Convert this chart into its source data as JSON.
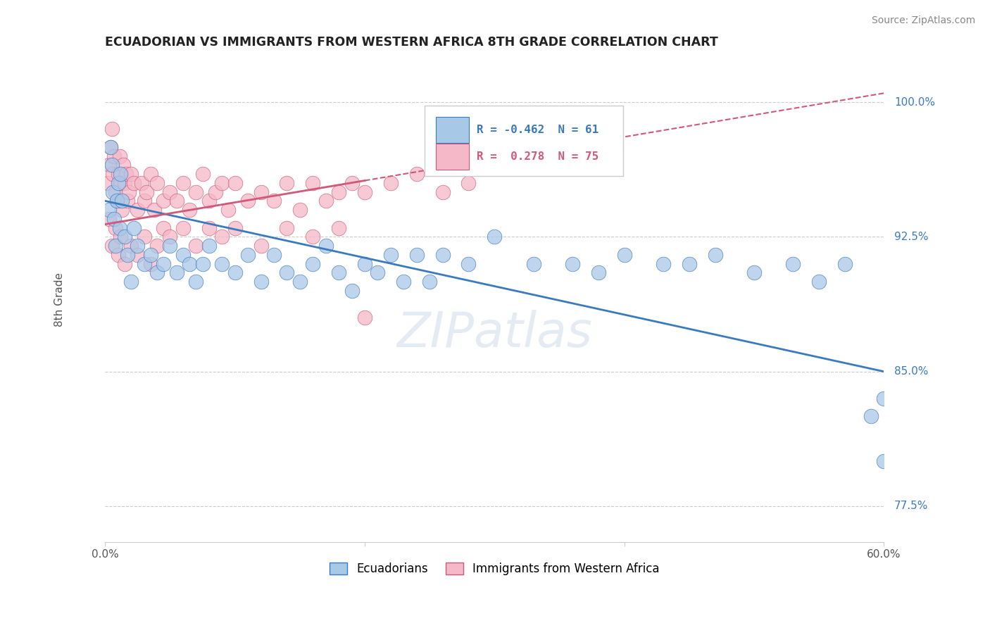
{
  "title": "ECUADORIAN VS IMMIGRANTS FROM WESTERN AFRICA 8TH GRADE CORRELATION CHART",
  "source": "Source: ZipAtlas.com",
  "ylabel": "8th Grade",
  "xlim": [
    0.0,
    60.0
  ],
  "ylim": [
    75.5,
    102.5
  ],
  "yticks": [
    77.5,
    85.0,
    92.5,
    100.0
  ],
  "blue_R": -0.462,
  "blue_N": 61,
  "pink_R": 0.278,
  "pink_N": 75,
  "blue_color": "#a8c8e8",
  "pink_color": "#f4b8c8",
  "blue_line_color": "#3a7abf",
  "pink_line_color": "#d05878",
  "legend_blue_label": "Ecuadorians",
  "legend_pink_label": "Immigrants from Western Africa",
  "watermark": "ZIPatlas",
  "background_color": "#ffffff",
  "blue_line_x0": 0.0,
  "blue_line_y0": 94.5,
  "blue_line_x1": 60.0,
  "blue_line_y1": 85.0,
  "pink_line_x0": 0.0,
  "pink_line_y0": 93.2,
  "pink_line_x1": 60.0,
  "pink_line_y1": 100.5,
  "pink_solid_end_x": 20.0,
  "blue_scatter_x": [
    0.3,
    0.4,
    0.5,
    0.6,
    0.7,
    0.8,
    0.9,
    1.0,
    1.1,
    1.2,
    1.3,
    1.5,
    1.7,
    2.0,
    2.2,
    2.5,
    3.0,
    3.5,
    4.0,
    4.5,
    5.0,
    5.5,
    6.0,
    6.5,
    7.0,
    7.5,
    8.0,
    9.0,
    10.0,
    11.0,
    12.0,
    13.0,
    14.0,
    15.0,
    16.0,
    17.0,
    18.0,
    19.0,
    20.0,
    21.0,
    22.0,
    23.0,
    24.0,
    25.0,
    26.0,
    28.0,
    30.0,
    33.0,
    36.0,
    38.0,
    40.0,
    43.0,
    45.0,
    47.0,
    50.0,
    53.0,
    55.0,
    57.0,
    59.0,
    60.0,
    60.0
  ],
  "blue_scatter_y": [
    94.0,
    97.5,
    96.5,
    95.0,
    93.5,
    92.0,
    94.5,
    95.5,
    93.0,
    96.0,
    94.5,
    92.5,
    91.5,
    90.0,
    93.0,
    92.0,
    91.0,
    91.5,
    90.5,
    91.0,
    92.0,
    90.5,
    91.5,
    91.0,
    90.0,
    91.0,
    92.0,
    91.0,
    90.5,
    91.5,
    90.0,
    91.5,
    90.5,
    90.0,
    91.0,
    92.0,
    90.5,
    89.5,
    91.0,
    90.5,
    91.5,
    90.0,
    91.5,
    90.0,
    91.5,
    91.0,
    92.5,
    91.0,
    91.0,
    90.5,
    91.5,
    91.0,
    91.0,
    91.5,
    90.5,
    91.0,
    90.0,
    91.0,
    82.5,
    80.0,
    83.5
  ],
  "pink_scatter_x": [
    0.2,
    0.3,
    0.4,
    0.5,
    0.6,
    0.7,
    0.8,
    0.9,
    1.0,
    1.1,
    1.2,
    1.3,
    1.4,
    1.5,
    1.6,
    1.7,
    1.8,
    2.0,
    2.2,
    2.5,
    2.8,
    3.0,
    3.2,
    3.5,
    3.8,
    4.0,
    4.5,
    5.0,
    5.5,
    6.0,
    6.5,
    7.0,
    7.5,
    8.0,
    8.5,
    9.0,
    9.5,
    10.0,
    11.0,
    12.0,
    13.0,
    14.0,
    15.0,
    16.0,
    17.0,
    18.0,
    19.0,
    20.0,
    22.0,
    24.0,
    26.0,
    28.0,
    0.3,
    0.5,
    0.8,
    1.0,
    1.2,
    1.5,
    2.0,
    2.5,
    3.0,
    3.5,
    4.0,
    4.5,
    5.0,
    6.0,
    7.0,
    8.0,
    9.0,
    10.0,
    12.0,
    14.0,
    16.0,
    18.0,
    20.0
  ],
  "pink_scatter_y": [
    95.5,
    96.5,
    97.5,
    98.5,
    96.0,
    97.0,
    95.0,
    94.5,
    96.0,
    97.0,
    95.5,
    94.0,
    96.5,
    95.5,
    96.0,
    94.5,
    95.0,
    96.0,
    95.5,
    94.0,
    95.5,
    94.5,
    95.0,
    96.0,
    94.0,
    95.5,
    94.5,
    95.0,
    94.5,
    95.5,
    94.0,
    95.0,
    96.0,
    94.5,
    95.0,
    95.5,
    94.0,
    95.5,
    94.5,
    95.0,
    94.5,
    95.5,
    94.0,
    95.5,
    94.5,
    95.0,
    95.5,
    95.0,
    95.5,
    96.0,
    95.0,
    95.5,
    93.5,
    92.0,
    93.0,
    91.5,
    92.5,
    91.0,
    92.0,
    91.5,
    92.5,
    91.0,
    92.0,
    93.0,
    92.5,
    93.0,
    92.0,
    93.0,
    92.5,
    93.0,
    92.0,
    93.0,
    92.5,
    93.0,
    88.0
  ]
}
